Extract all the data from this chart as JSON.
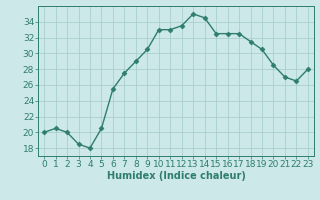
{
  "x": [
    0,
    1,
    2,
    3,
    4,
    5,
    6,
    7,
    8,
    9,
    10,
    11,
    12,
    13,
    14,
    15,
    16,
    17,
    18,
    19,
    20,
    21,
    22,
    23
  ],
  "y": [
    20,
    20.5,
    20,
    18.5,
    18,
    20.5,
    25.5,
    27.5,
    29,
    30.5,
    33,
    33,
    33.5,
    35,
    34.5,
    32.5,
    32.5,
    32.5,
    31.5,
    30.5,
    28.5,
    27,
    26.5,
    28
  ],
  "xlabel": "Humidex (Indice chaleur)",
  "ylim": [
    17,
    36
  ],
  "xlim": [
    -0.5,
    23.5
  ],
  "yticks": [
    18,
    20,
    22,
    24,
    26,
    28,
    30,
    32,
    34
  ],
  "xticks": [
    0,
    1,
    2,
    3,
    4,
    5,
    6,
    7,
    8,
    9,
    10,
    11,
    12,
    13,
    14,
    15,
    16,
    17,
    18,
    19,
    20,
    21,
    22,
    23
  ],
  "line_color": "#2e7d6e",
  "marker": "D",
  "marker_size": 2.5,
  "bg_color": "#cce8e8",
  "grid_color": "#aacece",
  "tick_color": "#2e7d6e",
  "label_color": "#2e7d6e",
  "xlabel_fontsize": 7,
  "tick_fontsize": 6.5,
  "line_width": 1.0
}
